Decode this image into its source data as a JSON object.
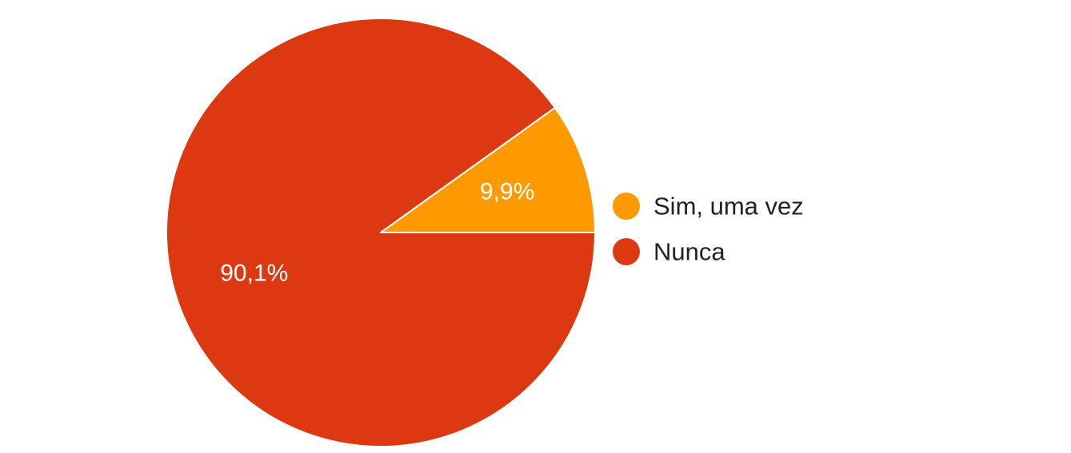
{
  "chart_data": {
    "type": "pie",
    "title": "",
    "slices": [
      {
        "label": "Sim, uma vez",
        "value": 9.9,
        "display": "9,9%",
        "color": "#ff9900"
      },
      {
        "label": "Nunca",
        "value": 90.1,
        "display": "90,1%",
        "color": "#dc3912"
      }
    ],
    "start_angle_deg": 0,
    "direction": "counterclockwise",
    "slice_border_color": "#ffffff",
    "legend_position": "right"
  }
}
